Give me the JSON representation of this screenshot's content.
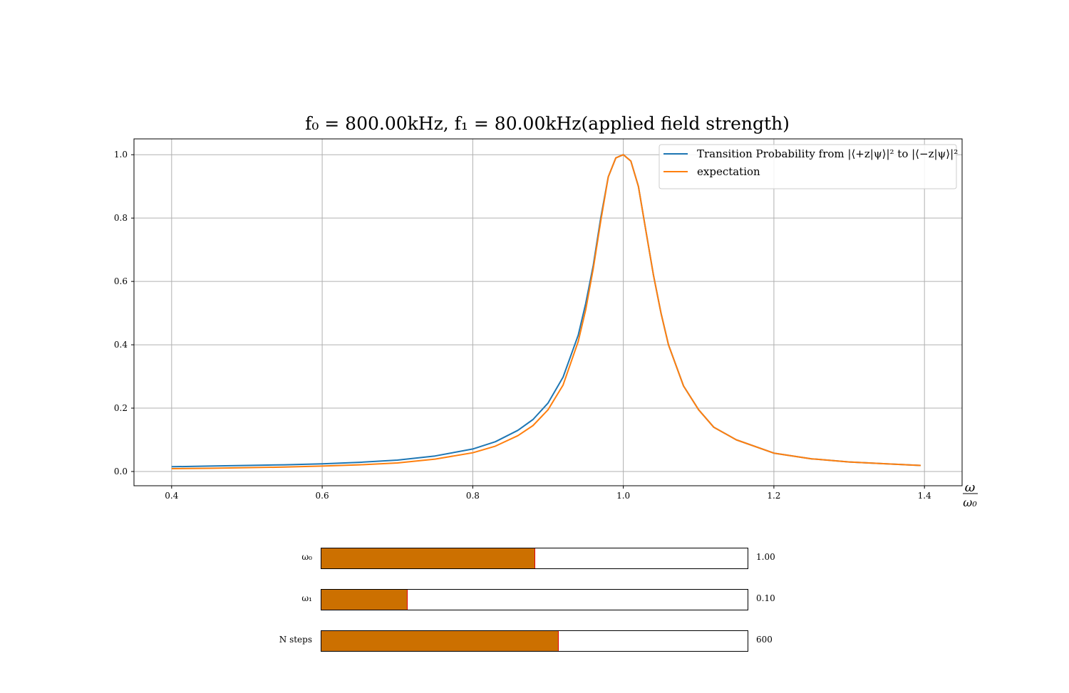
{
  "chart_data": {
    "type": "line",
    "title": "f₀ = 800.00kHz, f₁ = 80.00kHz(applied field strength)",
    "title_parts": {
      "f0": "800.00",
      "f1": "80.00",
      "unit": "kHz",
      "suffix": "(applied field strength)"
    },
    "xlabel_num": "ω",
    "xlabel_den": "ω₀",
    "ylabel": "",
    "xlim": [
      0.35,
      1.45
    ],
    "ylim": [
      -0.045,
      1.05
    ],
    "xticks": [
      0.4,
      0.6,
      0.8,
      1.0,
      1.2,
      1.4
    ],
    "xtick_labels": [
      "0.4",
      "0.6",
      "0.8",
      "1.0",
      "1.2",
      "1.4"
    ],
    "yticks": [
      0.0,
      0.2,
      0.4,
      0.6,
      0.8,
      1.0
    ],
    "ytick_labels": [
      "0.0",
      "0.2",
      "0.4",
      "0.6",
      "0.8",
      "1.0"
    ],
    "grid": true,
    "legend_position": "top-right",
    "series": [
      {
        "name": "Transition Probability from |⟨+z|ψ⟩|² to |⟨−z|ψ⟩|²",
        "color": "#1f77b4",
        "x": [
          0.4,
          0.45,
          0.5,
          0.55,
          0.6,
          0.65,
          0.7,
          0.75,
          0.8,
          0.83,
          0.86,
          0.88,
          0.9,
          0.92,
          0.94,
          0.95,
          0.96,
          0.97,
          0.98,
          0.99,
          1.0,
          1.01,
          1.02,
          1.03,
          1.04,
          1.05,
          1.06,
          1.08,
          1.1,
          1.12,
          1.15,
          1.2,
          1.25,
          1.3,
          1.35,
          1.395
        ],
        "y": [
          0.015,
          0.017,
          0.019,
          0.021,
          0.024,
          0.029,
          0.036,
          0.049,
          0.071,
          0.094,
          0.13,
          0.164,
          0.216,
          0.298,
          0.43,
          0.53,
          0.65,
          0.8,
          0.93,
          0.99,
          1.0,
          0.98,
          0.9,
          0.76,
          0.62,
          0.5,
          0.4,
          0.27,
          0.195,
          0.14,
          0.1,
          0.058,
          0.04,
          0.03,
          0.024,
          0.019
        ]
      },
      {
        "name": "expectation",
        "color": "#ff7f0e",
        "x": [
          0.4,
          0.45,
          0.5,
          0.55,
          0.6,
          0.65,
          0.7,
          0.75,
          0.8,
          0.83,
          0.86,
          0.88,
          0.9,
          0.92,
          0.94,
          0.95,
          0.96,
          0.97,
          0.98,
          0.99,
          1.0,
          1.01,
          1.02,
          1.03,
          1.04,
          1.05,
          1.06,
          1.08,
          1.1,
          1.12,
          1.15,
          1.2,
          1.25,
          1.3,
          1.35,
          1.395
        ],
        "y": [
          0.009,
          0.01,
          0.012,
          0.014,
          0.017,
          0.021,
          0.027,
          0.039,
          0.059,
          0.08,
          0.113,
          0.145,
          0.195,
          0.273,
          0.41,
          0.51,
          0.64,
          0.79,
          0.93,
          0.99,
          1.0,
          0.98,
          0.9,
          0.76,
          0.62,
          0.5,
          0.4,
          0.27,
          0.195,
          0.14,
          0.1,
          0.058,
          0.04,
          0.03,
          0.024,
          0.019
        ]
      }
    ]
  },
  "sliders": [
    {
      "label": "ω₀",
      "value": 1.0,
      "min": 0.0,
      "max": 2.0,
      "value_text": "1.00"
    },
    {
      "label": "ω₁",
      "value": 0.1,
      "min": 0.0,
      "max": 0.5,
      "value_text": "0.10"
    },
    {
      "label": "N steps",
      "value": 600,
      "min": 0,
      "max": 1080,
      "value_text": "600"
    }
  ],
  "colors": {
    "slider_fill": "#cc7000",
    "slider_handle": "#e00000",
    "grid": "#b0b0b0"
  }
}
